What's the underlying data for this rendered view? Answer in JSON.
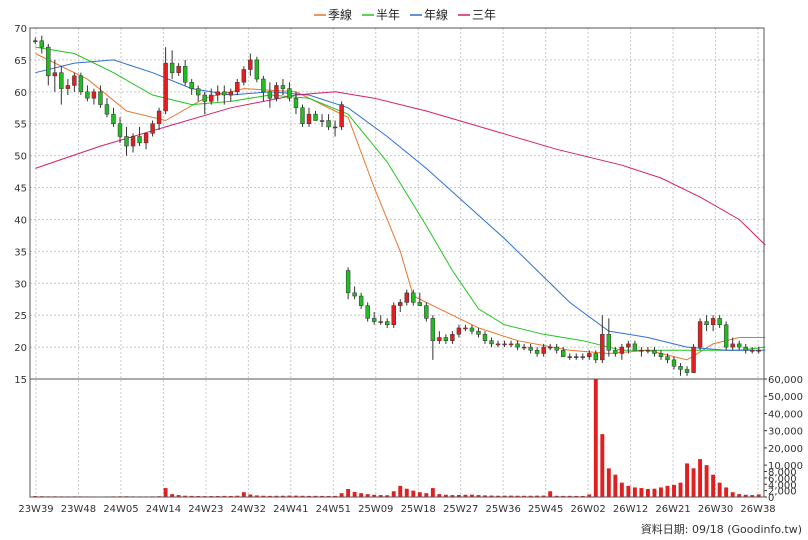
{
  "legend": [
    {
      "label": "季線",
      "color": "#e8762c"
    },
    {
      "label": "半年",
      "color": "#22c322"
    },
    {
      "label": "年線",
      "color": "#2f6fd6"
    },
    {
      "label": "三年",
      "color": "#d61f6b"
    }
  ],
  "footer": "資料日期: 09/18  (Goodinfo.tw)",
  "colors": {
    "up": "#e02020",
    "down": "#22bb22",
    "grid": "#c8c8c8",
    "volume": "#e02020"
  },
  "chart_data": [
    {
      "type": "candlestick",
      "ylim": [
        15,
        70
      ],
      "yticks": [
        15,
        20,
        25,
        30,
        35,
        40,
        45,
        50,
        55,
        60,
        65,
        70
      ],
      "xlabels": [
        "23W39",
        "23W48",
        "24W05",
        "24W14",
        "24W23",
        "24W32",
        "24W41",
        "24W51",
        "25W09",
        "25W18",
        "25W27",
        "25W36",
        "25W45",
        "26W02",
        "26W12",
        "26W21",
        "26W30",
        "26W38"
      ],
      "candles": [
        [
          68.0,
          68.5,
          67.5,
          68.0
        ],
        [
          68.0,
          68.8,
          66.0,
          67.0
        ],
        [
          67.0,
          67.5,
          61.0,
          62.5
        ],
        [
          62.5,
          65.0,
          60.0,
          63.0
        ],
        [
          63.0,
          64.0,
          58.0,
          60.5
        ],
        [
          60.5,
          62.0,
          59.5,
          61.0
        ],
        [
          61.0,
          63.0,
          60.0,
          62.5
        ],
        [
          62.5,
          63.0,
          59.5,
          60.0
        ],
        [
          60.0,
          61.0,
          58.5,
          59.0
        ],
        [
          59.0,
          60.5,
          58.0,
          60.0
        ],
        [
          60.0,
          61.0,
          57.5,
          58.0
        ],
        [
          58.0,
          59.0,
          56.0,
          56.5
        ],
        [
          56.5,
          57.5,
          54.5,
          55.0
        ],
        [
          55.0,
          56.0,
          52.0,
          53.0
        ],
        [
          53.0,
          54.5,
          50.0,
          51.5
        ],
        [
          51.5,
          53.5,
          50.5,
          53.0
        ],
        [
          53.0,
          54.5,
          51.5,
          52.0
        ],
        [
          52.0,
          53.0,
          51.0,
          53.5
        ],
        [
          53.5,
          55.5,
          53.0,
          55.0
        ],
        [
          55.0,
          57.5,
          54.0,
          57.0
        ],
        [
          57.0,
          67.0,
          56.5,
          64.5
        ],
        [
          64.5,
          66.5,
          62.0,
          63.0
        ],
        [
          63.0,
          64.5,
          62.5,
          64.0
        ],
        [
          64.0,
          65.0,
          61.0,
          61.5
        ],
        [
          61.5,
          62.0,
          59.5,
          60.5
        ],
        [
          60.5,
          61.0,
          58.5,
          59.5
        ],
        [
          59.5,
          60.0,
          56.5,
          58.5
        ],
        [
          58.5,
          60.5,
          58.0,
          59.5
        ],
        [
          59.5,
          61.0,
          58.5,
          60.0
        ],
        [
          60.0,
          61.0,
          58.0,
          59.5
        ],
        [
          59.5,
          60.5,
          58.5,
          60.0
        ],
        [
          60.0,
          62.0,
          59.5,
          61.5
        ],
        [
          61.5,
          64.0,
          61.0,
          63.5
        ],
        [
          63.5,
          66.0,
          62.5,
          65.0
        ],
        [
          65.0,
          65.5,
          61.5,
          62.0
        ],
        [
          62.0,
          62.5,
          58.5,
          60.0
        ],
        [
          60.0,
          61.5,
          57.5,
          59.0
        ],
        [
          59.0,
          61.5,
          58.5,
          61.0
        ],
        [
          61.0,
          62.0,
          59.5,
          60.5
        ],
        [
          60.5,
          61.5,
          58.5,
          59.0
        ],
        [
          59.0,
          60.0,
          56.5,
          57.5
        ],
        [
          57.5,
          58.0,
          54.5,
          55.0
        ],
        [
          55.0,
          57.5,
          54.5,
          56.5
        ],
        [
          56.5,
          57.0,
          55.5,
          55.5
        ],
        [
          55.5,
          56.5,
          54.5,
          55.5
        ],
        [
          55.5,
          56.5,
          54.0,
          54.5
        ],
        [
          54.5,
          55.5,
          53.0,
          54.5
        ],
        [
          54.5,
          58.5,
          54.0,
          58.0
        ],
        [
          32.0,
          32.5,
          27.5,
          28.5
        ],
        [
          28.5,
          29.5,
          27.5,
          28.0
        ],
        [
          28.0,
          28.5,
          26.0,
          26.5
        ],
        [
          26.5,
          27.0,
          24.0,
          24.5
        ],
        [
          24.5,
          25.5,
          23.5,
          24.0
        ],
        [
          24.0,
          25.0,
          23.5,
          24.0
        ],
        [
          24.0,
          24.5,
          23.0,
          23.5
        ],
        [
          23.5,
          27.0,
          23.0,
          26.5
        ],
        [
          26.5,
          27.5,
          25.5,
          27.0
        ],
        [
          27.0,
          29.0,
          26.5,
          28.5
        ],
        [
          28.5,
          29.0,
          26.5,
          27.0
        ],
        [
          27.0,
          28.5,
          26.5,
          26.5
        ],
        [
          26.5,
          27.0,
          24.0,
          24.5
        ],
        [
          24.5,
          25.0,
          18.0,
          21.0
        ],
        [
          21.0,
          22.5,
          20.5,
          21.5
        ],
        [
          21.5,
          22.0,
          20.5,
          21.0
        ],
        [
          21.0,
          22.5,
          20.5,
          22.0
        ],
        [
          22.0,
          23.5,
          21.5,
          23.0
        ],
        [
          23.0,
          23.5,
          22.5,
          23.0
        ],
        [
          23.0,
          23.5,
          22.0,
          22.5
        ],
        [
          22.5,
          23.0,
          21.5,
          22.0
        ],
        [
          22.0,
          22.5,
          20.5,
          21.0
        ],
        [
          21.0,
          21.5,
          20.0,
          20.5
        ],
        [
          20.5,
          21.0,
          20.0,
          20.5
        ],
        [
          20.5,
          21.0,
          20.0,
          20.5
        ],
        [
          20.5,
          21.0,
          20.0,
          20.5
        ],
        [
          20.5,
          21.0,
          19.5,
          20.0
        ],
        [
          20.0,
          20.5,
          19.5,
          20.0
        ],
        [
          20.0,
          20.5,
          19.0,
          19.5
        ],
        [
          19.5,
          20.0,
          18.5,
          19.0
        ],
        [
          19.0,
          20.5,
          18.5,
          20.0
        ],
        [
          20.0,
          20.5,
          19.5,
          20.0
        ],
        [
          20.0,
          20.5,
          19.0,
          19.5
        ],
        [
          19.5,
          20.0,
          18.5,
          18.5
        ],
        [
          18.5,
          19.0,
          18.0,
          18.5
        ],
        [
          18.5,
          19.0,
          18.0,
          18.5
        ],
        [
          18.5,
          19.0,
          18.0,
          18.5
        ],
        [
          18.5,
          19.5,
          18.0,
          19.0
        ],
        [
          19.0,
          19.5,
          17.5,
          18.0
        ],
        [
          18.0,
          25.0,
          17.5,
          22.0
        ],
        [
          22.0,
          24.5,
          18.5,
          19.5
        ],
        [
          19.5,
          20.0,
          18.5,
          19.0
        ],
        [
          19.0,
          20.5,
          18.0,
          20.0
        ],
        [
          20.0,
          21.0,
          19.0,
          20.5
        ],
        [
          20.5,
          21.0,
          19.5,
          19.5
        ],
        [
          19.5,
          20.0,
          18.5,
          19.5
        ],
        [
          19.5,
          20.0,
          19.0,
          19.5
        ],
        [
          19.5,
          20.0,
          18.5,
          19.0
        ],
        [
          19.0,
          19.5,
          18.0,
          18.5
        ],
        [
          18.5,
          19.0,
          17.5,
          18.0
        ],
        [
          18.0,
          18.5,
          16.5,
          17.0
        ],
        [
          17.0,
          17.5,
          15.5,
          16.5
        ],
        [
          16.5,
          17.0,
          15.5,
          16.0
        ],
        [
          16.0,
          20.5,
          16.0,
          20.0
        ],
        [
          20.0,
          24.5,
          19.5,
          24.0
        ],
        [
          24.0,
          25.0,
          22.5,
          23.5
        ],
        [
          23.5,
          25.0,
          22.5,
          24.5
        ],
        [
          24.5,
          25.0,
          23.0,
          23.5
        ],
        [
          23.5,
          24.0,
          19.5,
          20.0
        ],
        [
          20.0,
          21.5,
          19.5,
          20.5
        ],
        [
          20.5,
          21.0,
          19.5,
          20.0
        ],
        [
          20.0,
          20.5,
          19.0,
          19.5
        ],
        [
          19.5,
          20.0,
          19.0,
          19.5
        ],
        [
          19.5,
          20.0,
          19.0,
          19.5
        ]
      ],
      "ma": [
        {
          "name": "季線",
          "points": [
            [
              0,
              66.0
            ],
            [
              8,
              62.0
            ],
            [
              14,
              57.0
            ],
            [
              20,
              55.5
            ],
            [
              26,
              59.0
            ],
            [
              32,
              60.5
            ],
            [
              40,
              60.0
            ],
            [
              46,
              57.0
            ],
            [
              48,
              56.0
            ],
            [
              52,
              45.0
            ],
            [
              56,
              35.0
            ],
            [
              58,
              28.0
            ],
            [
              62,
              26.0
            ],
            [
              68,
              23.0
            ],
            [
              74,
              21.0
            ],
            [
              82,
              19.5
            ],
            [
              88,
              19.0
            ],
            [
              94,
              19.5
            ],
            [
              100,
              18.0
            ],
            [
              104,
              20.5
            ],
            [
              108,
              21.5
            ],
            [
              112,
              21.5
            ]
          ]
        },
        {
          "name": "半年",
          "points": [
            [
              0,
              67.0
            ],
            [
              6,
              66.0
            ],
            [
              12,
              63.0
            ],
            [
              18,
              59.5
            ],
            [
              24,
              58.0
            ],
            [
              30,
              58.5
            ],
            [
              36,
              59.5
            ],
            [
              42,
              59.0
            ],
            [
              48,
              56.5
            ],
            [
              54,
              49.0
            ],
            [
              60,
              39.0
            ],
            [
              64,
              32.0
            ],
            [
              68,
              26.0
            ],
            [
              72,
              23.5
            ],
            [
              78,
              22.0
            ],
            [
              84,
              21.0
            ],
            [
              90,
              19.5
            ],
            [
              96,
              19.5
            ],
            [
              102,
              19.5
            ],
            [
              108,
              19.5
            ],
            [
              112,
              20.0
            ]
          ]
        },
        {
          "name": "年線",
          "points": [
            [
              0,
              63.0
            ],
            [
              6,
              64.5
            ],
            [
              12,
              65.0
            ],
            [
              18,
              63.0
            ],
            [
              24,
              60.5
            ],
            [
              30,
              59.5
            ],
            [
              36,
              60.0
            ],
            [
              42,
              59.5
            ],
            [
              48,
              57.5
            ],
            [
              54,
              53.0
            ],
            [
              60,
              48.0
            ],
            [
              66,
              42.5
            ],
            [
              72,
              37.0
            ],
            [
              78,
              31.0
            ],
            [
              82,
              27.0
            ],
            [
              88,
              22.5
            ],
            [
              94,
              21.5
            ],
            [
              100,
              20.0
            ],
            [
              106,
              19.5
            ],
            [
              112,
              19.5
            ]
          ]
        },
        {
          "name": "三年",
          "points": [
            [
              0,
              48.0
            ],
            [
              10,
              51.5
            ],
            [
              20,
              54.5
            ],
            [
              30,
              57.5
            ],
            [
              40,
              59.5
            ],
            [
              46,
              60.0
            ],
            [
              52,
              59.0
            ],
            [
              60,
              57.0
            ],
            [
              70,
              54.0
            ],
            [
              80,
              51.0
            ],
            [
              90,
              48.5
            ],
            [
              96,
              46.5
            ],
            [
              102,
              43.5
            ],
            [
              108,
              40.0
            ],
            [
              112,
              36.0
            ]
          ]
        }
      ]
    },
    {
      "type": "bar",
      "title": "volume",
      "ylim": [
        0,
        60000
      ],
      "yticks": [
        0,
        2000,
        4000,
        6000,
        8000,
        10000,
        20000,
        30000,
        40000,
        50000,
        60000
      ],
      "ytick_labels": [
        "0",
        "2,000",
        "4,000",
        "6,000",
        "8,000",
        "10,000",
        "20,000",
        "30,000",
        "40,000",
        "50,000",
        "60,000"
      ],
      "values": [
        300,
        250,
        200,
        220,
        200,
        180,
        200,
        190,
        180,
        170,
        160,
        180,
        200,
        220,
        240,
        200,
        190,
        180,
        200,
        250,
        2800,
        900,
        600,
        400,
        350,
        300,
        280,
        300,
        320,
        350,
        330,
        400,
        1500,
        800,
        500,
        400,
        350,
        380,
        400,
        450,
        420,
        380,
        350,
        360,
        340,
        330,
        350,
        1200,
        2500,
        1600,
        1200,
        900,
        700,
        600,
        550,
        1800,
        3500,
        2600,
        2000,
        1500,
        1200,
        2800,
        900,
        700,
        600,
        650,
        700,
        750,
        600,
        500,
        450,
        400,
        420,
        430,
        400,
        380,
        400,
        420,
        450,
        1800,
        380,
        350,
        360,
        340,
        330,
        800,
        60000,
        28000,
        9000,
        7000,
        4500,
        3500,
        3000,
        2800,
        2500,
        2600,
        3000,
        3500,
        3800,
        4500,
        11000,
        9000,
        13500,
        10000,
        7000,
        4500,
        3000,
        1500,
        900,
        700,
        600,
        800
      ]
    }
  ]
}
